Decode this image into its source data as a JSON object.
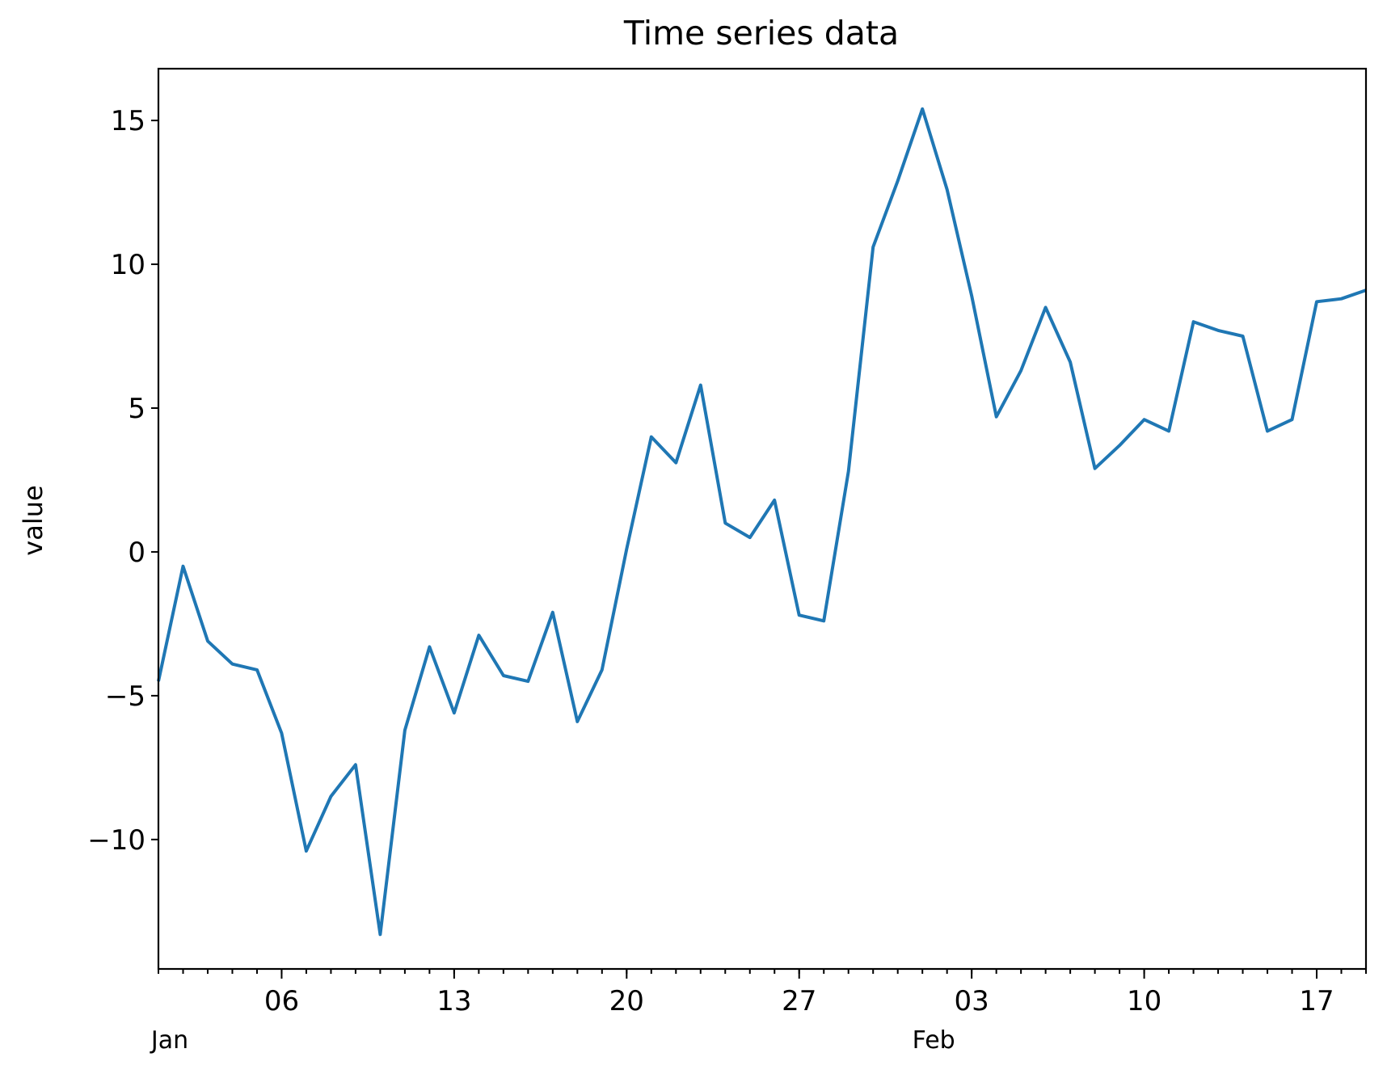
{
  "chart_data": {
    "type": "line",
    "title": "Time series data",
    "xlabel": "",
    "ylabel": "value",
    "xlim": [
      "2000-01-01",
      "2000-02-19"
    ],
    "ylim": [
      -14.5,
      16.8
    ],
    "grid": false,
    "legend": "none",
    "colors": {
      "line": "#1f77b4",
      "axis": "#000000"
    },
    "yticks": [
      {
        "value": -10,
        "label": "−10"
      },
      {
        "value": -5,
        "label": "−5"
      },
      {
        "value": 0,
        "label": "0"
      },
      {
        "value": 5,
        "label": "5"
      },
      {
        "value": 10,
        "label": "10"
      },
      {
        "value": 15,
        "label": "15"
      }
    ],
    "xticks_major": [
      {
        "date": "2000-01-06",
        "label": "06"
      },
      {
        "date": "2000-01-13",
        "label": "13"
      },
      {
        "date": "2000-01-20",
        "label": "20"
      },
      {
        "date": "2000-01-27",
        "label": "27"
      },
      {
        "date": "2000-02-03",
        "label": "03"
      },
      {
        "date": "2000-02-10",
        "label": "10"
      },
      {
        "date": "2000-02-17",
        "label": "17"
      }
    ],
    "month_labels": [
      {
        "date": "2000-01-01",
        "label": "Jan"
      },
      {
        "date": "2000-02-01",
        "label": "Feb"
      }
    ],
    "series": [
      {
        "x": [
          "2000-01-01",
          "2000-01-02",
          "2000-01-03",
          "2000-01-04",
          "2000-01-05",
          "2000-01-06",
          "2000-01-07",
          "2000-01-08",
          "2000-01-09",
          "2000-01-10",
          "2000-01-11",
          "2000-01-12",
          "2000-01-13",
          "2000-01-14",
          "2000-01-15",
          "2000-01-16",
          "2000-01-17",
          "2000-01-18",
          "2000-01-19",
          "2000-01-20",
          "2000-01-21",
          "2000-01-22",
          "2000-01-23",
          "2000-01-24",
          "2000-01-25",
          "2000-01-26",
          "2000-01-27",
          "2000-01-28",
          "2000-01-29",
          "2000-01-30",
          "2000-01-31",
          "2000-02-01",
          "2000-02-02",
          "2000-02-03",
          "2000-02-04",
          "2000-02-05",
          "2000-02-06",
          "2000-02-07",
          "2000-02-08",
          "2000-02-09",
          "2000-02-10",
          "2000-02-11",
          "2000-02-12",
          "2000-02-13",
          "2000-02-14",
          "2000-02-15",
          "2000-02-16",
          "2000-02-17",
          "2000-02-18",
          "2000-02-19"
        ],
        "values": [
          -4.5,
          -0.5,
          -3.1,
          -3.9,
          -4.1,
          -6.3,
          -10.4,
          -8.5,
          -7.4,
          -13.3,
          -6.2,
          -3.3,
          -5.6,
          -2.9,
          -4.3,
          -4.5,
          -2.1,
          -5.9,
          -4.1,
          0.1,
          4.0,
          3.1,
          5.8,
          1.0,
          0.5,
          1.8,
          -2.2,
          -2.4,
          2.8,
          10.6,
          12.9,
          15.4,
          12.6,
          8.9,
          4.7,
          6.3,
          8.5,
          6.6,
          2.9,
          3.7,
          4.6,
          4.2,
          8.0,
          7.7,
          7.5,
          4.2,
          4.6,
          8.7,
          8.8,
          9.1
        ]
      }
    ]
  }
}
